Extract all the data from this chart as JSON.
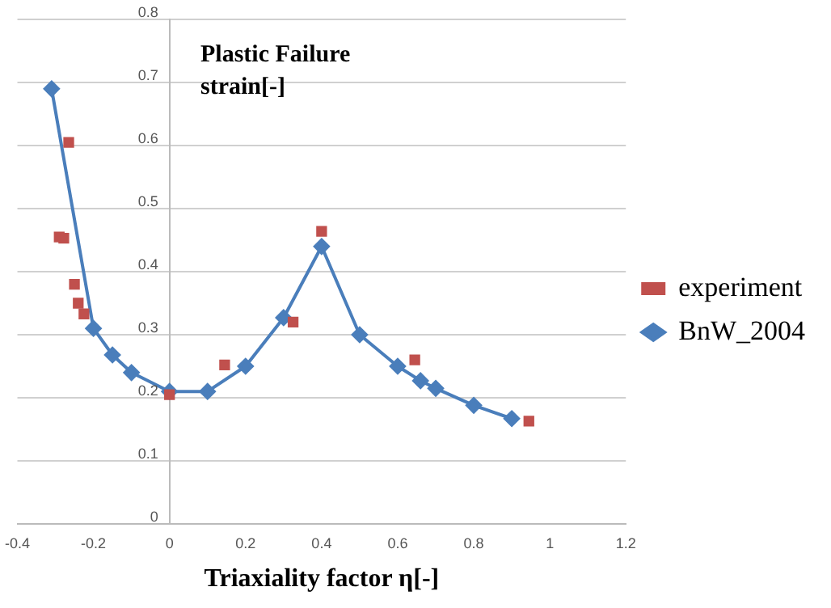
{
  "chart_data": {
    "type": "line",
    "xlabel": "Triaxiality factor η[-]",
    "ylabel": "Plastic Failure strain[-]",
    "xlim": [
      -0.4,
      1.2
    ],
    "xticks": [
      -0.4,
      -0.2,
      0,
      0.2,
      0.4,
      0.6,
      0.8,
      1,
      1.2
    ],
    "ylim": [
      0,
      0.8
    ],
    "yticks": [
      0,
      0.1,
      0.2,
      0.3,
      0.4,
      0.5,
      0.6,
      0.7,
      0.8
    ],
    "grid": "y",
    "legend": "right",
    "series": [
      {
        "name": "BnW_2004",
        "marker": "diamond",
        "color": "#4a7ebb",
        "x": [
          -0.31,
          -0.2,
          -0.15,
          -0.1,
          0,
          0.1,
          0.2,
          0.3,
          0.4,
          0.5,
          0.6,
          0.66,
          0.7,
          0.8,
          0.9
        ],
        "values": [
          0.69,
          0.31,
          0.268,
          0.24,
          0.21,
          0.21,
          0.25,
          0.327,
          0.44,
          0.3,
          0.25,
          0.227,
          0.215,
          0.188,
          0.167
        ]
      },
      {
        "name": "experiment",
        "type": "scatter",
        "marker": "square",
        "color": "#c0504d",
        "x": [
          -0.265,
          -0.29,
          -0.278,
          -0.25,
          -0.24,
          -0.225,
          0,
          0.145,
          0.325,
          0.4,
          0.645,
          0.945
        ],
        "values": [
          0.605,
          0.455,
          0.453,
          0.38,
          0.35,
          0.333,
          0.205,
          0.252,
          0.32,
          0.464,
          0.26,
          0.163
        ]
      }
    ]
  }
}
